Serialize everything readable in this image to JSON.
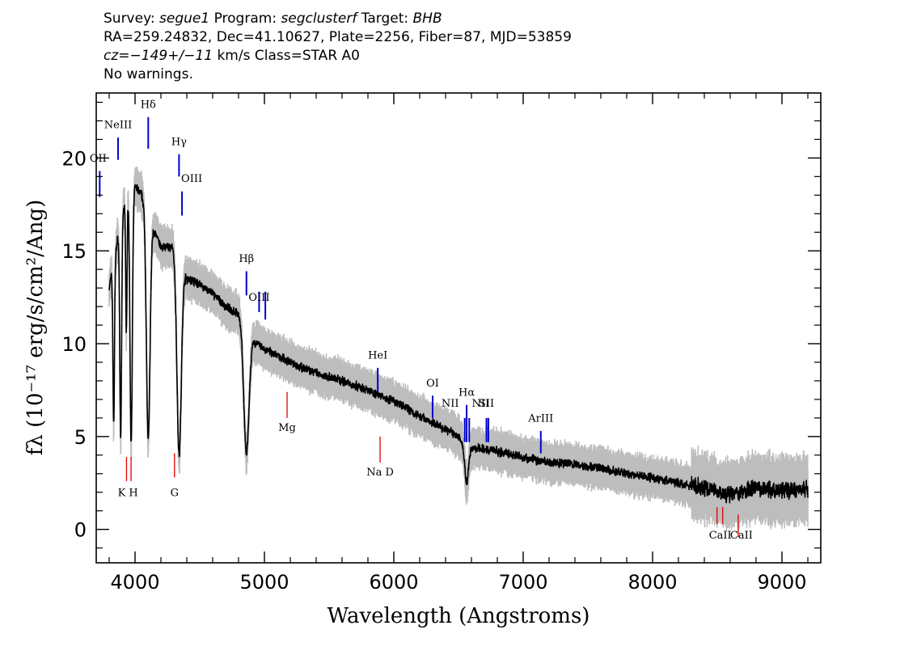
{
  "header": {
    "survey_label": "Survey: ",
    "survey": "segue1",
    "program_label": " Program: ",
    "program": "segclusterf",
    "target_label": " Target: ",
    "target": "BHB",
    "line2": "RA=259.24832, Dec=41.10627, Plate=2256, Fiber=87, MJD=53859",
    "cz": "cz=−149+/−11",
    "line3_rest": " km/s Class=STAR A0",
    "line4": "No warnings."
  },
  "chart_data": {
    "type": "line",
    "xlabel": "Wavelength (Angstroms)",
    "ylabel": "fλ (10⁻¹⁷ erg/s/cm²/Ang)",
    "xlim": [
      3700,
      9300
    ],
    "ylim": [
      -1.8,
      23.5
    ],
    "x_ticks": [
      4000,
      5000,
      6000,
      7000,
      8000,
      9000
    ],
    "y_ticks": [
      0,
      5,
      10,
      15,
      20
    ],
    "colors": {
      "flux": "#000000",
      "error": "#bdbdbd",
      "emission": "#0000cc",
      "absorption": "#dd0000"
    },
    "continuum": [
      {
        "x": 3800,
        "y": 13.0
      },
      {
        "x": 3850,
        "y": 15.0
      },
      {
        "x": 3900,
        "y": 17.0
      },
      {
        "x": 3950,
        "y": 18.0
      },
      {
        "x": 4000,
        "y": 18.5
      },
      {
        "x": 4050,
        "y": 18.0
      },
      {
        "x": 4100,
        "y": 17.3
      },
      {
        "x": 4150,
        "y": 16.0
      },
      {
        "x": 4200,
        "y": 15.2
      },
      {
        "x": 4300,
        "y": 15.2
      },
      {
        "x": 4400,
        "y": 13.5
      },
      {
        "x": 4500,
        "y": 13.2
      },
      {
        "x": 4600,
        "y": 12.7
      },
      {
        "x": 4700,
        "y": 12.0
      },
      {
        "x": 4800,
        "y": 11.6
      },
      {
        "x": 4900,
        "y": 10.2
      },
      {
        "x": 5000,
        "y": 9.7
      },
      {
        "x": 5200,
        "y": 9.0
      },
      {
        "x": 5400,
        "y": 8.4
      },
      {
        "x": 5600,
        "y": 8.0
      },
      {
        "x": 5800,
        "y": 7.5
      },
      {
        "x": 6000,
        "y": 6.9
      },
      {
        "x": 6200,
        "y": 6.1
      },
      {
        "x": 6400,
        "y": 5.4
      },
      {
        "x": 6500,
        "y": 5.0
      },
      {
        "x": 6600,
        "y": 4.4
      },
      {
        "x": 6800,
        "y": 4.2
      },
      {
        "x": 7000,
        "y": 3.9
      },
      {
        "x": 7200,
        "y": 3.6
      },
      {
        "x": 7400,
        "y": 3.5
      },
      {
        "x": 7600,
        "y": 3.3
      },
      {
        "x": 7800,
        "y": 3.0
      },
      {
        "x": 8000,
        "y": 2.8
      },
      {
        "x": 8200,
        "y": 2.5
      },
      {
        "x": 8400,
        "y": 2.2
      },
      {
        "x": 8600,
        "y": 1.9
      },
      {
        "x": 8800,
        "y": 2.2
      },
      {
        "x": 9000,
        "y": 2.1
      },
      {
        "x": 9200,
        "y": 2.2
      }
    ],
    "absorption_features": [
      {
        "x": 3835,
        "depth": 0.6,
        "width": 6
      },
      {
        "x": 3889,
        "depth": 0.7,
        "width": 7
      },
      {
        "x": 3933,
        "depth": 0.4,
        "width": 5
      },
      {
        "x": 3970,
        "depth": 0.75,
        "width": 9
      },
      {
        "x": 4102,
        "depth": 0.72,
        "width": 14
      },
      {
        "x": 4341,
        "depth": 0.72,
        "width": 17
      },
      {
        "x": 4861,
        "depth": 0.62,
        "width": 20
      },
      {
        "x": 6563,
        "depth": 0.45,
        "width": 15
      }
    ],
    "emission_lines": [
      {
        "label": "OII",
        "x": 3727,
        "y1": 17.9,
        "y2": 19.3,
        "label_y": 19.8
      },
      {
        "label": "NeIII",
        "x": 3869,
        "y1": 19.9,
        "y2": 21.1,
        "label_y": 21.6
      },
      {
        "label": "Hδ",
        "x": 4102,
        "y1": 20.5,
        "y2": 22.2,
        "label_y": 22.7
      },
      {
        "label": "Hγ",
        "x": 4340,
        "y1": 19.0,
        "y2": 20.2,
        "label_y": 20.7
      },
      {
        "label": "OIII",
        "x": 4363,
        "y1": 16.9,
        "y2": 18.2,
        "label_y": 18.7
      },
      {
        "label": "Hβ",
        "x": 4861,
        "y1": 12.6,
        "y2": 13.9,
        "label_y": 14.4
      },
      {
        "label": "OIII",
        "x": 4959,
        "y1": 11.7,
        "y2": 12.8,
        "label_y": 12.3
      },
      {
        "label": "OIII",
        "x": 5007,
        "y1": 11.3,
        "y2": 12.8,
        "label_y": 13.3
      },
      {
        "label": "HeI",
        "x": 5876,
        "y1": 7.4,
        "y2": 8.7,
        "label_y": 9.2
      },
      {
        "label": "OI",
        "x": 6300,
        "y1": 6.0,
        "y2": 7.2,
        "label_y": 7.7
      },
      {
        "label": "NII",
        "x": 6548,
        "y1": 4.7,
        "y2": 6.0,
        "label_y": 6.6
      },
      {
        "label": "Hα",
        "x": 6563,
        "y1": 4.7,
        "y2": 6.7,
        "label_y": 7.2
      },
      {
        "label": "NII",
        "x": 6583,
        "y1": 4.7,
        "y2": 6.0,
        "label_y": 6.6
      },
      {
        "label": "SII",
        "x": 6716,
        "y1": 4.7,
        "y2": 6.0,
        "label_y": 6.6
      },
      {
        "label": "SII",
        "x": 6731,
        "y1": 4.7,
        "y2": 6.0,
        "label_y": 6.6
      },
      {
        "label": "ArIII",
        "x": 7136,
        "y1": 4.1,
        "y2": 5.3,
        "label_y": 5.8
      }
    ],
    "absorption_lines": [
      {
        "label": "K",
        "x": 3934,
        "y1": 2.6,
        "y2": 3.9,
        "label_y": 1.8
      },
      {
        "label": "H",
        "x": 3969,
        "y1": 2.6,
        "y2": 3.9,
        "label_y": 1.8
      },
      {
        "label": "G",
        "x": 4305,
        "y1": 2.8,
        "y2": 4.1,
        "label_y": 1.8
      },
      {
        "label": "Mg",
        "x": 5175,
        "y1": 7.4,
        "y2": 6.0,
        "label_y": 5.3
      },
      {
        "label": "Na D",
        "x": 5894,
        "y1": 3.6,
        "y2": 5.0,
        "label_y": 2.9
      },
      {
        "label": "CaII",
        "x": 8498,
        "y1": 0.3,
        "y2": 1.2,
        "label_y": -0.5
      },
      {
        "label": "CaII",
        "x": 8542,
        "y1": 0.3,
        "y2": 1.2,
        "label_y": -0.5
      },
      {
        "label": "CaII",
        "x": 8662,
        "y1": -0.4,
        "y2": 0.8,
        "label_y": -0.5
      }
    ]
  }
}
